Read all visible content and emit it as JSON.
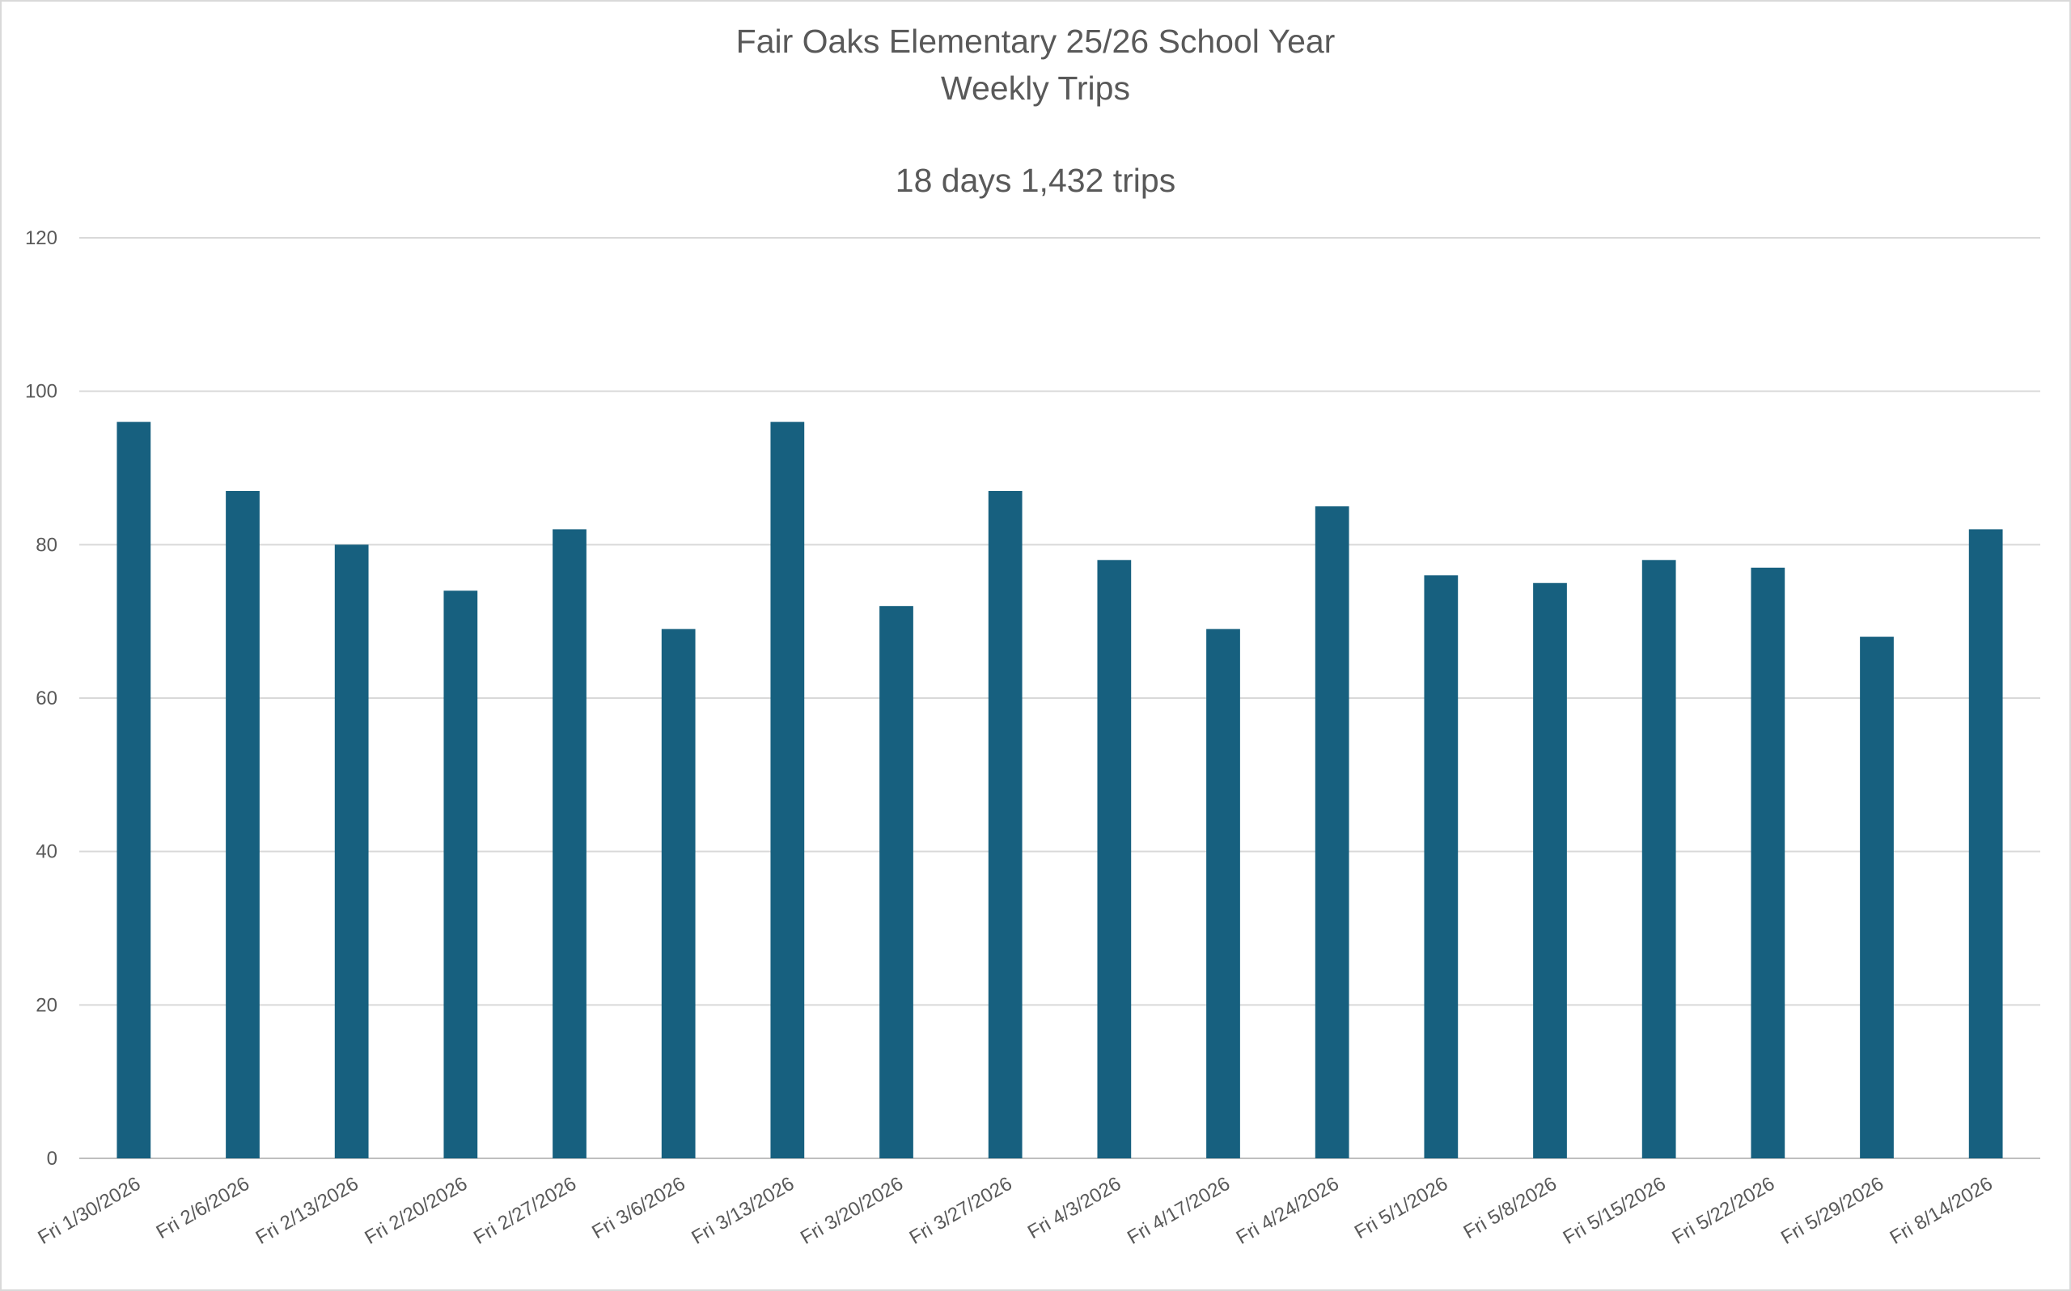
{
  "chart_data": {
    "type": "bar",
    "title": "Fair Oaks Elementary 25/26 School Year",
    "title_line2": "Weekly Trips",
    "subtitle": "18 days 1,432 trips",
    "xlabel": "",
    "ylabel": "",
    "ylim": [
      0,
      120
    ],
    "yticks": [
      0,
      20,
      40,
      60,
      80,
      100,
      120
    ],
    "grid": true,
    "legend": "none",
    "bar_color": "#17607F",
    "categories": [
      "Fri 1/30/2026",
      "Fri 2/6/2026",
      "Fri 2/13/2026",
      "Fri 2/20/2026",
      "Fri 2/27/2026",
      "Fri 3/6/2026",
      "Fri 3/13/2026",
      "Fri 3/20/2026",
      "Fri 3/27/2026",
      "Fri 4/3/2026",
      "Fri 4/17/2026",
      "Fri 4/24/2026",
      "Fri 5/1/2026",
      "Fri 5/8/2026",
      "Fri 5/15/2026",
      "Fri 5/22/2026",
      "Fri 5/29/2026",
      "Fri 8/14/2026"
    ],
    "values": [
      96,
      87,
      80,
      74,
      82,
      69,
      96,
      72,
      87,
      78,
      69,
      85,
      76,
      75,
      78,
      77,
      68,
      82
    ]
  }
}
